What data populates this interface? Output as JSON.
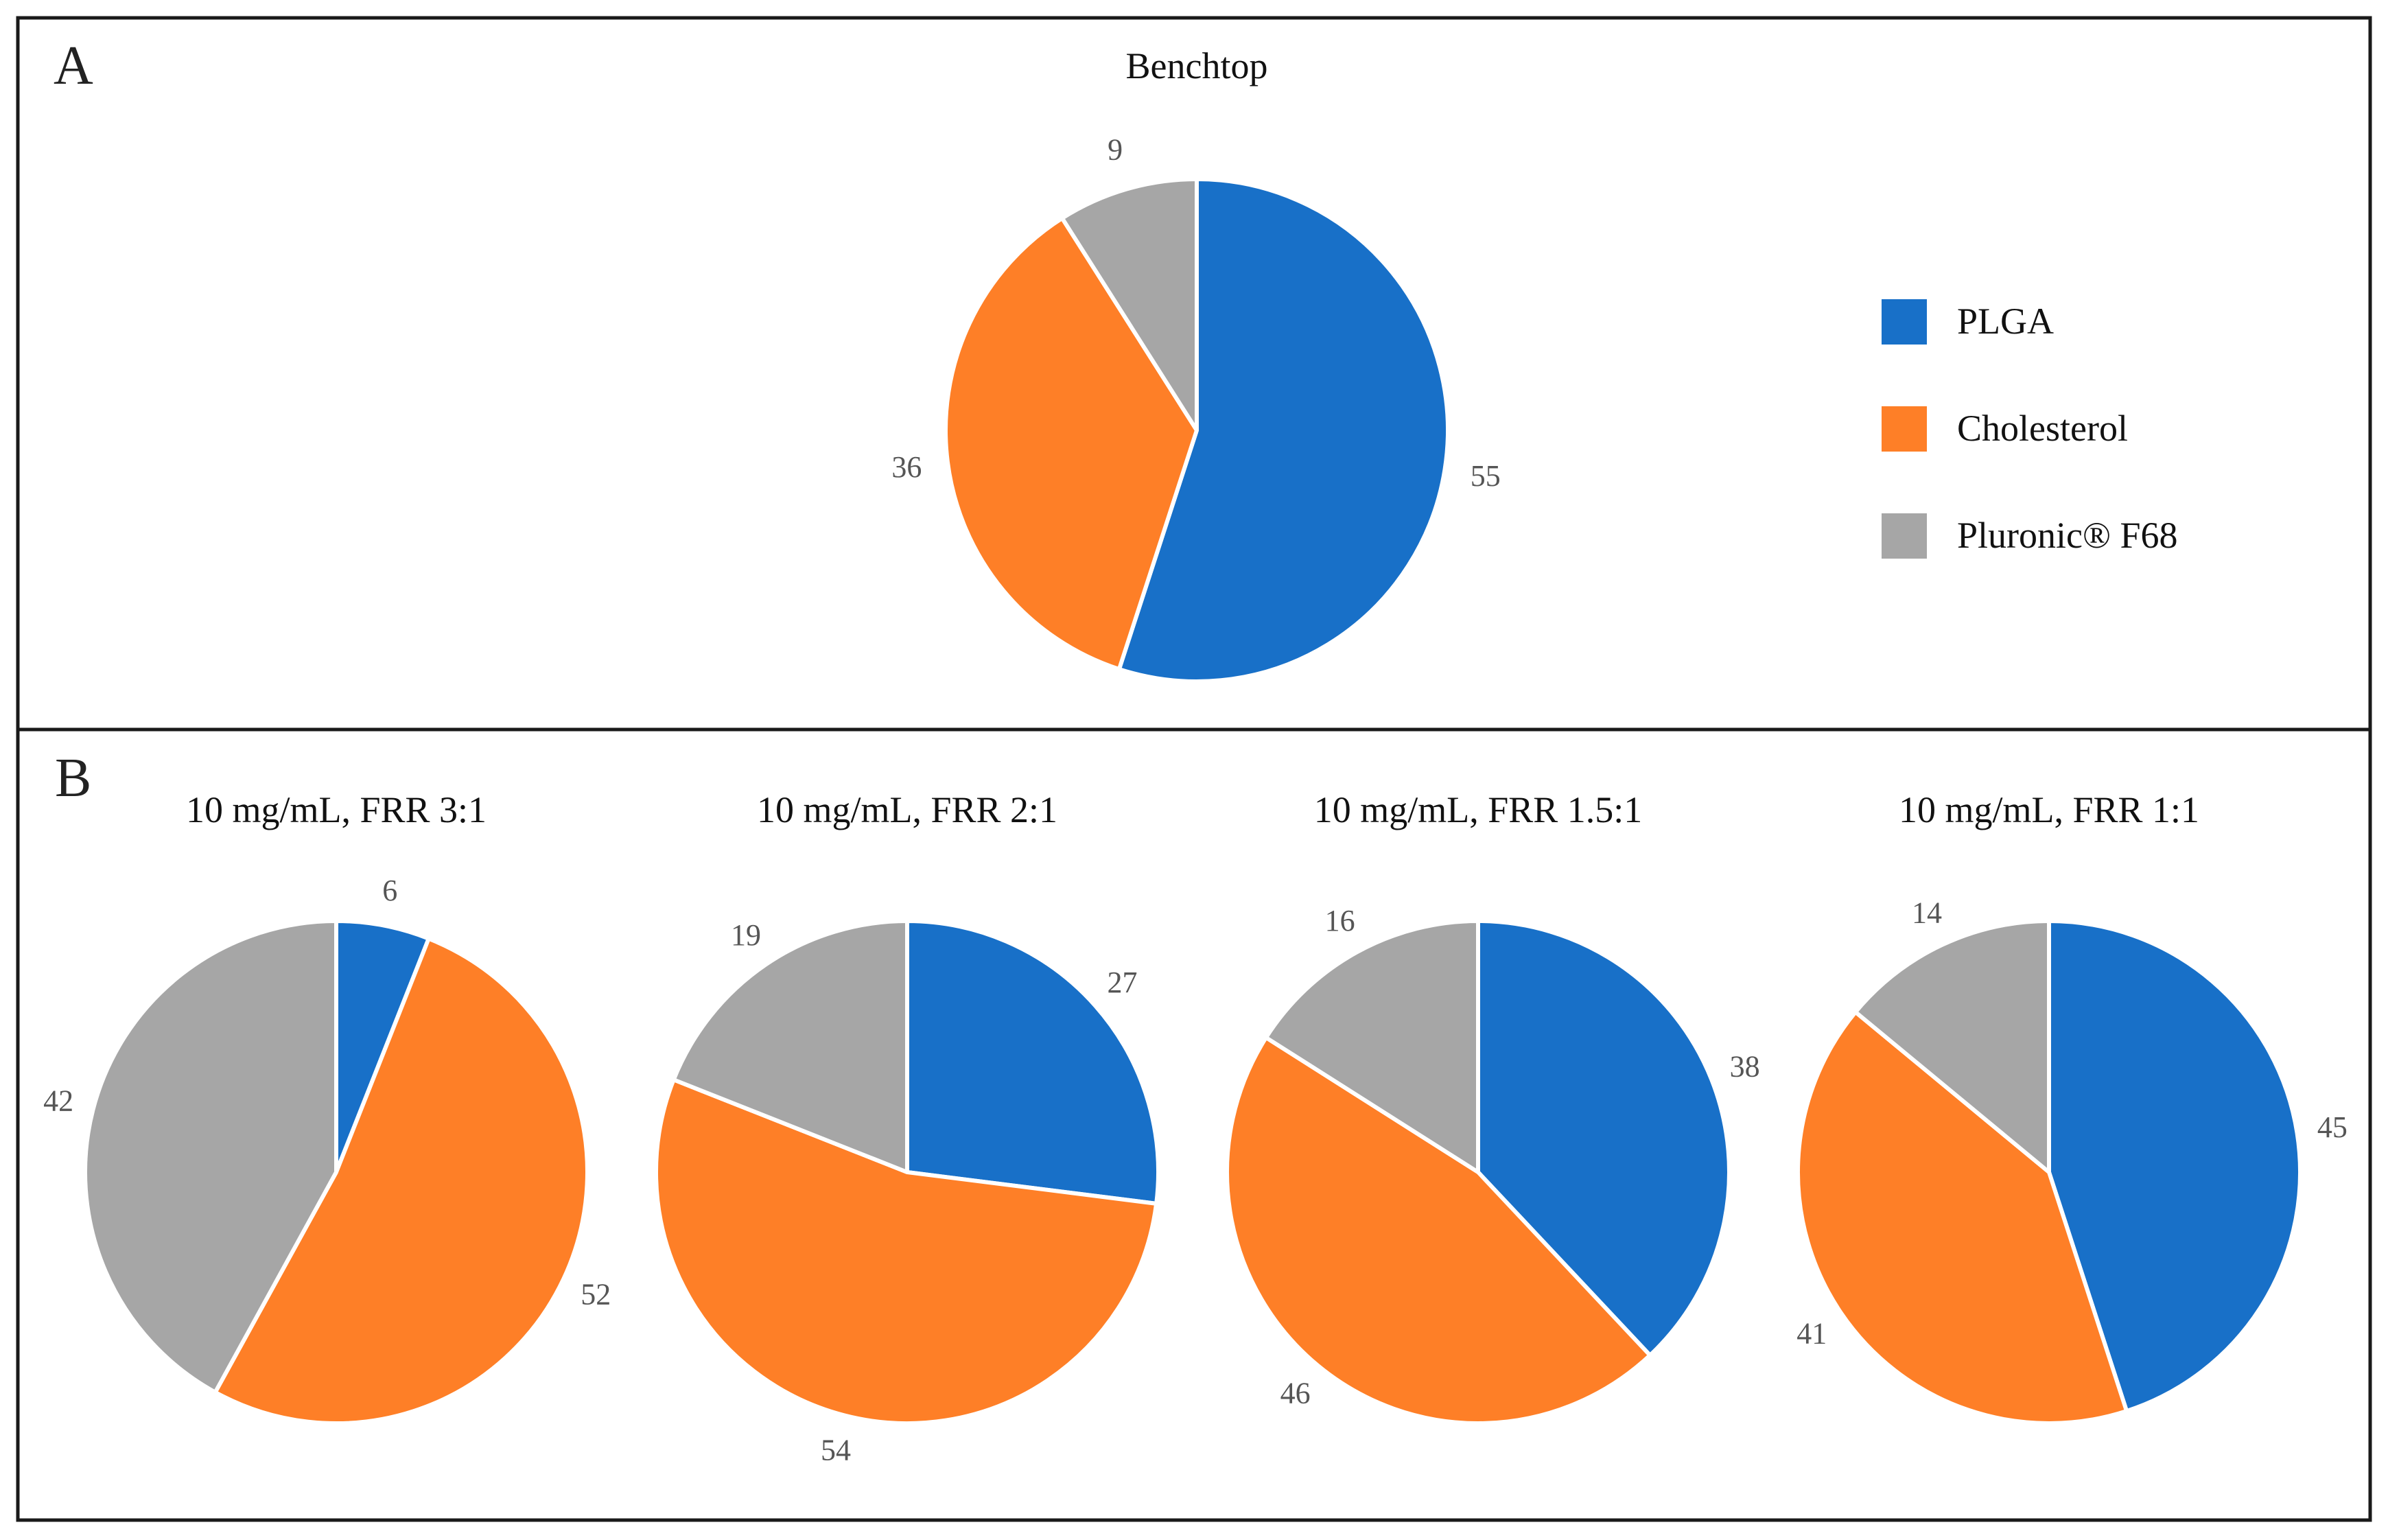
{
  "panels": {
    "a": {
      "letter": "A"
    },
    "b": {
      "letter": "B"
    }
  },
  "legend": {
    "items": [
      {
        "label": "PLGA",
        "color": "#1870c8"
      },
      {
        "label": "Cholesterol",
        "color": "#fe7f27"
      },
      {
        "label": "Pluronic® F68",
        "color": "#a6a6a6"
      }
    ]
  },
  "chart_data": [
    {
      "type": "pie",
      "panel": "A",
      "title": "Benchtop",
      "categories": [
        "PLGA",
        "Cholesterol",
        "Pluronic® F68"
      ],
      "values": [
        55,
        36,
        9
      ],
      "colors": [
        "#1870c8",
        "#fe7f27",
        "#a6a6a6"
      ]
    },
    {
      "type": "pie",
      "panel": "B",
      "title": "10 mg/mL, FRR 3:1",
      "categories": [
        "PLGA",
        "Cholesterol",
        "Pluronic® F68"
      ],
      "values": [
        6,
        52,
        42
      ],
      "colors": [
        "#1870c8",
        "#fe7f27",
        "#a6a6a6"
      ]
    },
    {
      "type": "pie",
      "panel": "B",
      "title": "10 mg/mL, FRR 2:1",
      "categories": [
        "PLGA",
        "Cholesterol",
        "Pluronic® F68"
      ],
      "values": [
        27,
        54,
        19
      ],
      "colors": [
        "#1870c8",
        "#fe7f27",
        "#a6a6a6"
      ]
    },
    {
      "type": "pie",
      "panel": "B",
      "title": "10 mg/mL, FRR 1.5:1",
      "categories": [
        "PLGA",
        "Cholesterol",
        "Pluronic® F68"
      ],
      "values": [
        38,
        46,
        16
      ],
      "colors": [
        "#1870c8",
        "#fe7f27",
        "#a6a6a6"
      ]
    },
    {
      "type": "pie",
      "panel": "B",
      "title": "10 mg/mL, FRR 1:1",
      "categories": [
        "PLGA",
        "Cholesterol",
        "Pluronic® F68"
      ],
      "values": [
        45,
        41,
        14
      ],
      "colors": [
        "#1870c8",
        "#fe7f27",
        "#a6a6a6"
      ]
    }
  ]
}
